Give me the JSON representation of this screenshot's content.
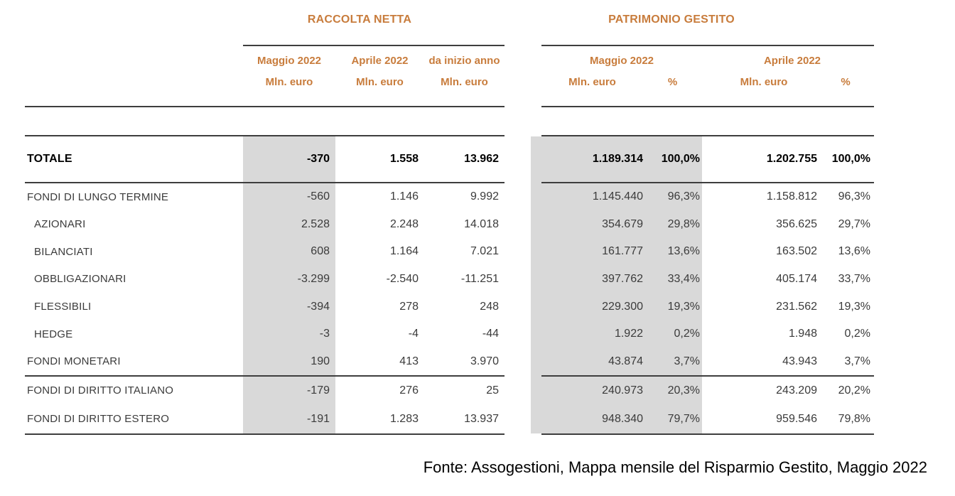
{
  "colors": {
    "accent": "#c87c3c",
    "band": "#d9d9d9",
    "rule": "#3e3e3e"
  },
  "sections": {
    "raccolta": {
      "title": "RACCOLTA NETTA",
      "col_periods": [
        "Maggio 2022",
        "Aprile 2022",
        "da inizio anno"
      ],
      "col_units": [
        "Mln. euro",
        "Mln. euro",
        "Mln. euro"
      ]
    },
    "patrimonio": {
      "title": "PATRIMONIO GESTITO",
      "col_periods": [
        "Maggio 2022",
        "Aprile 2022"
      ],
      "unit": "Mln. euro",
      "pct": "%"
    }
  },
  "table": {
    "rows": [
      {
        "label": "TOTALE",
        "raccolta": [
          "-370",
          "1.558",
          "13.962"
        ],
        "patrimonio": [
          "1.189.314",
          "100,0%",
          "1.202.755",
          "100,0%"
        ]
      },
      {
        "label": "FONDI DI LUNGO TERMINE",
        "raccolta": [
          "-560",
          "1.146",
          "9.992"
        ],
        "patrimonio": [
          "1.145.440",
          "96,3%",
          "1.158.812",
          "96,3%"
        ]
      },
      {
        "label": "AZIONARI",
        "raccolta": [
          "2.528",
          "2.248",
          "14.018"
        ],
        "patrimonio": [
          "354.679",
          "29,8%",
          "356.625",
          "29,7%"
        ]
      },
      {
        "label": "BILANCIATI",
        "raccolta": [
          "608",
          "1.164",
          "7.021"
        ],
        "patrimonio": [
          "161.777",
          "13,6%",
          "163.502",
          "13,6%"
        ]
      },
      {
        "label": "OBBLIGAZIONARI",
        "raccolta": [
          "-3.299",
          "-2.540",
          "-11.251"
        ],
        "patrimonio": [
          "397.762",
          "33,4%",
          "405.174",
          "33,7%"
        ]
      },
      {
        "label": "FLESSIBILI",
        "raccolta": [
          "-394",
          "278",
          "248"
        ],
        "patrimonio": [
          "229.300",
          "19,3%",
          "231.562",
          "19,3%"
        ]
      },
      {
        "label": "HEDGE",
        "raccolta": [
          "-3",
          "-4",
          "-44"
        ],
        "patrimonio": [
          "1.922",
          "0,2%",
          "1.948",
          "0,2%"
        ]
      },
      {
        "label": "FONDI MONETARI",
        "raccolta": [
          "190",
          "413",
          "3.970"
        ],
        "patrimonio": [
          "43.874",
          "3,7%",
          "43.943",
          "3,7%"
        ]
      },
      {
        "label": "FONDI DI DIRITTO ITALIANO",
        "raccolta": [
          "-179",
          "276",
          "25"
        ],
        "patrimonio": [
          "240.973",
          "20,3%",
          "243.209",
          "20,2%"
        ]
      },
      {
        "label": "FONDI DI DIRITTO ESTERO",
        "raccolta": [
          "-191",
          "1.283",
          "13.937"
        ],
        "patrimonio": [
          "948.340",
          "79,7%",
          "959.546",
          "79,8%"
        ]
      }
    ]
  },
  "footer": {
    "source": "Fonte: Assogestioni, Mappa mensile del Risparmio Gestito, Maggio 2022"
  }
}
